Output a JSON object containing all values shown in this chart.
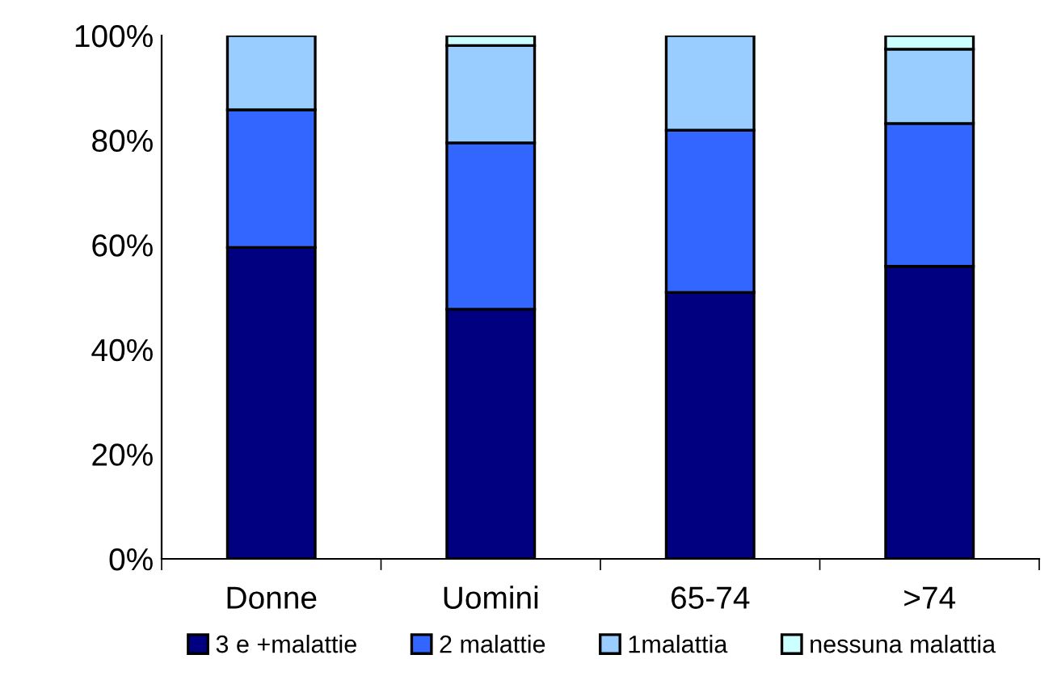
{
  "chart_data": {
    "type": "bar",
    "stacked": true,
    "categories": [
      "Donne",
      "Uomini",
      "65-74",
      ">74"
    ],
    "series": [
      {
        "name": "3 e +malattie",
        "color": "#000080",
        "values": [
          59.5,
          47.7,
          50.9,
          55.9
        ]
      },
      {
        "name": "2 malattie",
        "color": "#3366ff",
        "values": [
          26.3,
          31.8,
          31.0,
          27.3
        ]
      },
      {
        "name": "1malattia",
        "color": "#99ccff",
        "values": [
          14.2,
          18.6,
          18.1,
          14.2
        ]
      },
      {
        "name": "nessuna malattia",
        "color": "#ccffff",
        "values": [
          null,
          1.9,
          null,
          2.6
        ]
      }
    ],
    "ylim": [
      0,
      100
    ],
    "yticks": [
      {
        "value": 0,
        "label": "0%"
      },
      {
        "value": 20,
        "label": "20%"
      },
      {
        "value": 40,
        "label": "40%"
      },
      {
        "value": 60,
        "label": "60%"
      },
      {
        "value": 80,
        "label": "80%"
      },
      {
        "value": 100,
        "label": "100%"
      }
    ],
    "grid": false,
    "legend": "bottom"
  }
}
